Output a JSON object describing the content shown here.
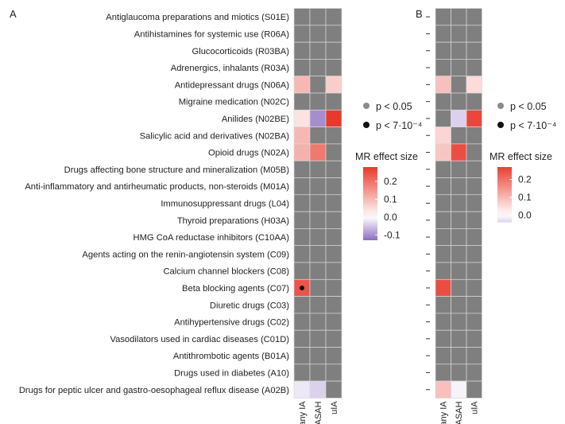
{
  "chart_data": {
    "type": "heatmap",
    "rows": [
      "Antiglaucoma preparations and miotics (S01E)",
      "Antihistamines for systemic use (R06A)",
      "Glucocorticoids (R03BA)",
      "Adrenergics, inhalants (R03A)",
      "Antidepressant drugs (N06A)",
      "Migraine medication (N02C)",
      "Anilides (N02BE)",
      "Salicylic acid and derivatives (N02BA)",
      "Opioid drugs (N02A)",
      "Drugs affecting bone structure and mineralization (M05B)",
      "Anti-inflammatory and antirheumatic products, non-steroids (M01A)",
      "Immunosuppressant drugs (L04)",
      "Thyroid preparations (H03A)",
      "HMG CoA reductase inhibitors (C10AA)",
      "Agents acting on the renin-angiotensin system (C09)",
      "Calcium channel blockers (C08)",
      "Beta blocking agents (C07)",
      "Diuretic drugs (C03)",
      "Antihypertensive drugs (C02)",
      "Vasodilators used in cardiac diseases (C01D)",
      "Antithrombotic agents (B01A)",
      "Drugs used in diabetes (A10)",
      "Drugs for peptic ulcer and gastro-oesophageal reflux disease (A02B)"
    ],
    "columns": [
      "any IA",
      "ASAH",
      "uIA"
    ],
    "panels": [
      {
        "label": "A",
        "values": [
          [
            null,
            null,
            null
          ],
          [
            null,
            null,
            null
          ],
          [
            null,
            null,
            null
          ],
          [
            null,
            null,
            null
          ],
          [
            0.1,
            null,
            0.07
          ],
          [
            null,
            null,
            null
          ],
          [
            0.04,
            -0.1,
            0.28
          ],
          [
            0.1,
            null,
            null
          ],
          [
            0.11,
            0.19,
            null
          ],
          [
            null,
            null,
            null
          ],
          [
            null,
            null,
            null
          ],
          [
            null,
            null,
            null
          ],
          [
            null,
            null,
            null
          ],
          [
            null,
            null,
            null
          ],
          [
            null,
            null,
            null
          ],
          [
            null,
            null,
            null
          ],
          [
            0.24,
            null,
            null
          ],
          [
            null,
            null,
            null
          ],
          [
            null,
            null,
            null
          ],
          [
            null,
            null,
            null
          ],
          [
            null,
            null,
            null
          ],
          [
            null,
            null,
            null
          ],
          [
            -0.02,
            -0.04,
            null
          ]
        ],
        "significance_strict": [
          [
            16,
            0
          ]
        ],
        "legend": {
          "title": "MR effect size",
          "ticks": [
            0.2,
            0.1,
            0.0,
            -0.1
          ],
          "tick_labels": [
            "0.2",
            "0.1",
            "0.0",
            "-0.1"
          ],
          "range": [
            -0.13,
            0.28
          ]
        },
        "significance_legend": [
          "p < 0.05",
          "p < 7·10⁻⁴"
        ]
      },
      {
        "label": "B",
        "values": [
          [
            null,
            null,
            null
          ],
          [
            null,
            null,
            null
          ],
          [
            null,
            null,
            null
          ],
          [
            null,
            null,
            null
          ],
          [
            0.09,
            null,
            0.05
          ],
          [
            null,
            null,
            null
          ],
          [
            null,
            -0.04,
            0.26
          ],
          [
            0.06,
            null,
            null
          ],
          [
            0.08,
            0.25,
            null
          ],
          [
            null,
            null,
            null
          ],
          [
            null,
            null,
            null
          ],
          [
            null,
            null,
            null
          ],
          [
            null,
            null,
            null
          ],
          [
            null,
            null,
            null
          ],
          [
            null,
            null,
            null
          ],
          [
            null,
            null,
            null
          ],
          [
            0.25,
            null,
            null
          ],
          [
            null,
            null,
            null
          ],
          [
            null,
            null,
            null
          ],
          [
            null,
            null,
            null
          ],
          [
            null,
            null,
            null
          ],
          [
            null,
            null,
            null
          ],
          [
            0.09,
            -0.01,
            null
          ]
        ],
        "significance_strict": [],
        "legend": {
          "title": "MR effect size",
          "ticks": [
            0.2,
            0.1,
            0.0
          ],
          "tick_labels": [
            "0.2",
            "0.1",
            "0.0"
          ],
          "range": [
            -0.04,
            0.27
          ]
        },
        "significance_legend": [
          "p < 0.05",
          "p < 7·10⁻⁴"
        ]
      }
    ]
  },
  "colors": {
    "missing": "#7f7f7f",
    "high": "#e8392b",
    "mid": "#ffffff",
    "low": "#8c6bc1",
    "dot_strict": "#111111",
    "dot_loose": "#8c8c8c",
    "text": "#222222"
  }
}
